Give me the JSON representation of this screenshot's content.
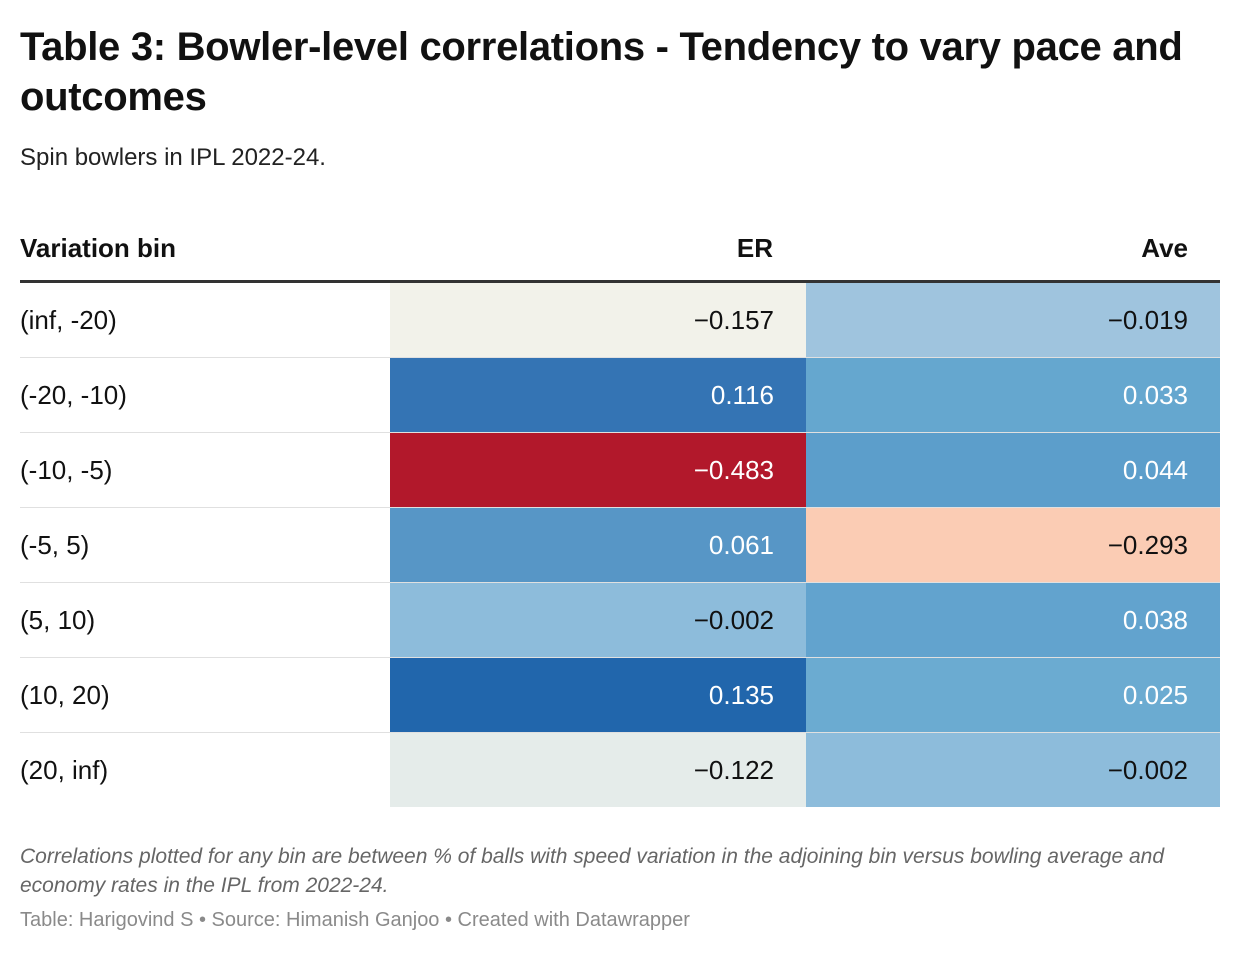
{
  "chart_data": {
    "type": "table",
    "title": "Table 3: Bowler-level correlations - Tendency to vary pace and outcomes",
    "subtitle": "Spin bowlers in IPL 2022-24.",
    "columns": [
      "Variation bin",
      "ER",
      "Ave"
    ],
    "rows": [
      {
        "bin": "(inf, -20)",
        "er": "−0.157",
        "ave": "−0.019",
        "er_value": -0.157,
        "ave_value": -0.019,
        "er_color": "#f2f2ea",
        "ave_color": "#9fc4de",
        "er_text": "#111111",
        "ave_text": "#111111"
      },
      {
        "bin": "(-20, -10)",
        "er": "0.116",
        "ave": "0.033",
        "er_value": 0.116,
        "ave_value": 0.033,
        "er_color": "#3474b4",
        "ave_color": "#65a7cf",
        "er_text": "#ffffff",
        "ave_text": "#ffffff"
      },
      {
        "bin": "(-10, -5)",
        "er": "−0.483",
        "ave": "0.044",
        "er_value": -0.483,
        "ave_value": 0.044,
        "er_color": "#b2182b",
        "ave_color": "#5c9ecb",
        "er_text": "#ffffff",
        "ave_text": "#ffffff"
      },
      {
        "bin": "(-5, 5)",
        "er": "0.061",
        "ave": "−0.293",
        "er_value": 0.061,
        "ave_value": -0.293,
        "er_color": "#5796c6",
        "ave_color": "#fbccb4",
        "er_text": "#ffffff",
        "ave_text": "#111111"
      },
      {
        "bin": "(5, 10)",
        "er": "−0.002",
        "ave": "0.038",
        "er_value": -0.002,
        "ave_value": 0.038,
        "er_color": "#8dbcdb",
        "ave_color": "#62a3ce",
        "er_text": "#111111",
        "ave_text": "#ffffff"
      },
      {
        "bin": "(10, 20)",
        "er": "0.135",
        "ave": "0.025",
        "er_value": 0.135,
        "ave_value": 0.025,
        "er_color": "#2166ac",
        "ave_color": "#6babd1",
        "er_text": "#ffffff",
        "ave_text": "#ffffff"
      },
      {
        "bin": "(20, inf)",
        "er": "−0.122",
        "ave": "−0.002",
        "er_value": -0.122,
        "ave_value": -0.002,
        "er_color": "#e5ecea",
        "ave_color": "#8dbcdb",
        "er_text": "#111111",
        "ave_text": "#111111"
      }
    ],
    "notes": "Correlations plotted for any bin are between % of balls with speed variation in the adjoining bin versus bowling average and economy rates in the IPL from 2022-24.",
    "byline": "Table: Harigovind S • Source: Himanish Ganjoo • Created with Datawrapper"
  }
}
